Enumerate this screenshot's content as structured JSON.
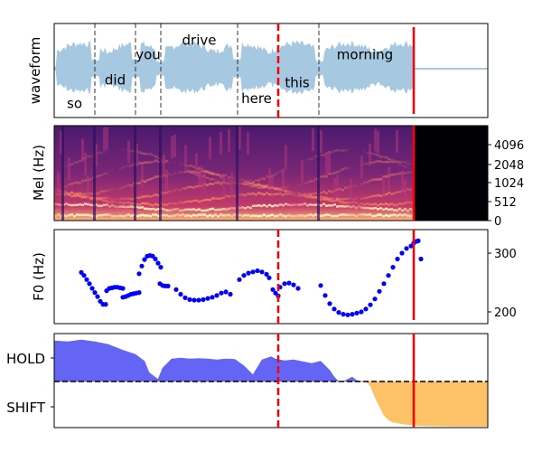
{
  "chart_data": [
    {
      "type": "area",
      "panel": "waveform",
      "ylabel": "waveform",
      "words": [
        {
          "text": "so",
          "start": 0.0,
          "end": 0.45
        },
        {
          "text": "did",
          "start": 0.45,
          "end": 0.9
        },
        {
          "text": "you",
          "start": 0.9,
          "end": 1.18
        },
        {
          "text": "drive",
          "start": 1.18,
          "end": 2.03
        },
        {
          "text": "here",
          "start": 2.03,
          "end": 2.45
        },
        {
          "text": "this",
          "start": 2.45,
          "end": 2.93
        },
        {
          "text": "morning",
          "start": 2.93,
          "end": 3.95
        }
      ],
      "word_boundaries": [
        0.45,
        0.9,
        1.18,
        2.03,
        2.93
      ],
      "waveform_color": "#a6c8e1",
      "duration": 4.8
    },
    {
      "type": "heatmap",
      "panel": "mel",
      "ylabel": "Mel (Hz)",
      "ytick_labels": [
        "4096",
        "2048",
        "1024",
        "512",
        "0"
      ],
      "colormap": "magma",
      "speech_end": 4.0
    },
    {
      "type": "scatter",
      "panel": "f0",
      "ylabel": "F0 (Hz)",
      "ytick_labels": [
        "300",
        "200"
      ],
      "ylim": [
        190,
        320
      ],
      "color": "#0000ff",
      "segments": [
        {
          "x": [
            0.3,
            0.33,
            0.36,
            0.39,
            0.42,
            0.45,
            0.48,
            0.51,
            0.54,
            0.57
          ],
          "y": [
            267,
            262,
            255,
            248,
            240,
            233,
            226,
            218,
            213,
            213
          ]
        },
        {
          "x": [
            0.58,
            0.61,
            0.64,
            0.67,
            0.7,
            0.73,
            0.76
          ],
          "y": [
            236,
            240,
            241,
            242,
            242,
            241,
            240
          ]
        },
        {
          "x": [
            0.76,
            0.79,
            0.82,
            0.85,
            0.88,
            0.91,
            0.94
          ],
          "y": [
            225,
            226,
            228,
            230,
            231,
            232,
            233
          ]
        },
        {
          "x": [
            0.94,
            0.97,
            1.0,
            1.03,
            1.06,
            1.09,
            1.12,
            1.15,
            1.18
          ],
          "y": [
            265,
            278,
            289,
            295,
            296,
            295,
            290,
            283,
            276
          ]
        },
        {
          "x": [
            1.17,
            1.2,
            1.23,
            1.26
          ],
          "y": [
            248,
            245,
            244,
            244
          ]
        },
        {
          "x": [
            1.35,
            1.4,
            1.45,
            1.5,
            1.55,
            1.6,
            1.65,
            1.7,
            1.75,
            1.8,
            1.85,
            1.9,
            1.95
          ],
          "y": [
            238,
            230,
            224,
            221,
            220,
            220,
            221,
            223,
            225,
            228,
            232,
            234,
            230
          ]
        },
        {
          "x": [
            2.05,
            2.1,
            2.15,
            2.2,
            2.25,
            2.3,
            2.35,
            2.38
          ],
          "y": [
            255,
            262,
            266,
            268,
            270,
            268,
            264,
            258
          ]
        },
        {
          "x": [
            2.42,
            2.45,
            2.48
          ],
          "y": [
            238,
            232,
            227
          ]
        },
        {
          "x": [
            2.5,
            2.55,
            2.6,
            2.65,
            2.7
          ],
          "y": [
            242,
            248,
            249,
            246,
            240
          ]
        },
        {
          "x": [
            2.95,
            3.0,
            3.05,
            3.1,
            3.15,
            3.2,
            3.25,
            3.3,
            3.35,
            3.4,
            3.45,
            3.5,
            3.55,
            3.6,
            3.65,
            3.7,
            3.75,
            3.8,
            3.85,
            3.9,
            3.95,
            3.98,
            4.01,
            4.03,
            4.06
          ],
          "y": [
            245,
            228,
            214,
            205,
            199,
            196,
            195,
            196,
            198,
            200,
            205,
            212,
            222,
            235,
            248,
            262,
            276,
            290,
            300,
            308,
            312,
            317,
            320,
            321,
            290
          ]
        }
      ]
    },
    {
      "type": "area",
      "panel": "hold-shift",
      "ytick_labels": [
        "HOLD",
        "SHIFT"
      ],
      "hold_color": "#6464f5",
      "shift_color": "#fdc267",
      "threshold_line": "dashed black",
      "hold_series": {
        "x": [
          0.0,
          0.15,
          0.3,
          0.45,
          0.6,
          0.75,
          0.9,
          1.0,
          1.05,
          1.15,
          1.2,
          1.3,
          1.4,
          1.5,
          1.6,
          1.7,
          1.8,
          1.9,
          2.0,
          2.1,
          2.2,
          2.3,
          2.4,
          2.45,
          2.55,
          2.65,
          2.75,
          2.85,
          2.95,
          3.0,
          3.05,
          3.1,
          3.15,
          3.2,
          3.25,
          3.3,
          3.35,
          3.4,
          3.45,
          3.5
        ],
        "y": [
          0.9,
          0.88,
          0.92,
          0.88,
          0.82,
          0.7,
          0.6,
          0.45,
          0.2,
          0.05,
          0.3,
          0.5,
          0.52,
          0.5,
          0.51,
          0.5,
          0.48,
          0.5,
          0.49,
          0.35,
          0.15,
          0.48,
          0.55,
          0.5,
          0.46,
          0.48,
          0.44,
          0.4,
          0.45,
          0.35,
          0.25,
          0.1,
          0.0,
          0.0,
          0.05,
          0.1,
          0.02,
          0.0,
          0.0,
          0.0
        ]
      },
      "shift_series": {
        "x": [
          3.45,
          3.5,
          3.55,
          3.6,
          3.65,
          3.7,
          3.75,
          3.8,
          3.9,
          4.0,
          4.1,
          4.2,
          4.4,
          4.6,
          4.8
        ],
        "y": [
          0.0,
          -0.1,
          -0.35,
          -0.55,
          -0.75,
          -0.85,
          -0.9,
          -0.92,
          -0.95,
          -0.97,
          -0.98,
          -0.98,
          -0.99,
          -0.99,
          -0.99
        ]
      }
    }
  ],
  "markers": {
    "dashed_red_time": 2.48,
    "solid_red_time": 3.98,
    "color": "#ff0000"
  }
}
